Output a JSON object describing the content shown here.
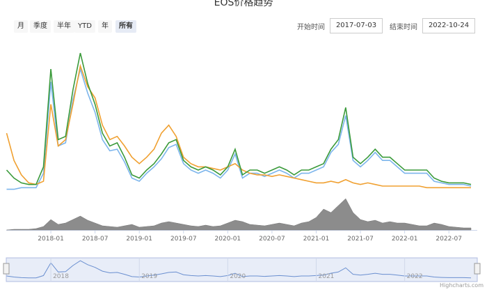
{
  "chart_data": {
    "type": "line",
    "title": "EOS价格趋势",
    "range_buttons": [
      "月",
      "季度",
      "半年",
      "YTD",
      "年",
      "所有"
    ],
    "selected_button": 5,
    "start_label": "开始时间",
    "start_date": "2017-07-03",
    "end_label": "结束时间",
    "end_date": "2022-10-24",
    "credit": "Highcharts.com",
    "x": [
      "2017-07",
      "2017-08",
      "2017-09",
      "2017-10",
      "2017-11",
      "2017-12",
      "2018-01",
      "2018-02",
      "2018-03",
      "2018-04",
      "2018-05",
      "2018-06",
      "2018-07",
      "2018-08",
      "2018-09",
      "2018-10",
      "2018-11",
      "2018-12",
      "2019-01",
      "2019-02",
      "2019-03",
      "2019-04",
      "2019-05",
      "2019-06",
      "2019-07",
      "2019-08",
      "2019-09",
      "2019-10",
      "2019-11",
      "2019-12",
      "2020-01",
      "2020-02",
      "2020-03",
      "2020-04",
      "2020-05",
      "2020-06",
      "2020-07",
      "2020-08",
      "2020-09",
      "2020-10",
      "2020-11",
      "2020-12",
      "2021-01",
      "2021-02",
      "2021-03",
      "2021-04",
      "2021-05",
      "2021-06",
      "2021-07",
      "2021-08",
      "2021-09",
      "2021-10",
      "2021-11",
      "2021-12",
      "2022-01",
      "2022-02",
      "2022-03",
      "2022-04",
      "2022-05",
      "2022-06",
      "2022-07",
      "2022-08",
      "2022-09",
      "2022-10"
    ],
    "xticks": [
      "2018-01",
      "2018-07",
      "2019-01",
      "2019-07",
      "2020-01",
      "2020-07",
      "2021-01",
      "2021-07",
      "2022-01",
      "2022-07"
    ],
    "ylim": [
      0,
      100
    ],
    "y2lim": [
      0,
      50
    ],
    "series": [
      {
        "color": "#7cb5ec",
        "values": [
          8,
          8,
          9,
          9,
          9,
          18,
          75,
          35,
          37,
          64,
          83,
          68,
          56,
          39,
          32,
          33,
          25,
          15,
          13,
          18,
          22,
          27,
          34,
          36,
          24,
          20,
          18,
          20,
          18,
          15,
          20,
          30,
          15,
          18,
          18,
          16,
          18,
          20,
          18,
          15,
          18,
          18,
          20,
          22,
          31,
          36,
          54,
          26,
          22,
          26,
          31,
          26,
          26,
          22,
          18,
          18,
          18,
          18,
          13,
          12,
          11,
          11,
          11,
          10
        ]
      },
      {
        "color": "#f0a030",
        "values": [
          43,
          26,
          17,
          12,
          11,
          13,
          61,
          35,
          39,
          61,
          85,
          72,
          65,
          48,
          39,
          41,
          35,
          28,
          24,
          28,
          33,
          43,
          48,
          41,
          28,
          24,
          22,
          22,
          21,
          20,
          22,
          24,
          20,
          18,
          17,
          17,
          16,
          17,
          16,
          15,
          14,
          13,
          12,
          12,
          13,
          12,
          14,
          12,
          11,
          12,
          11,
          10,
          10,
          10,
          10,
          10,
          10,
          9,
          9,
          9,
          9,
          9,
          9,
          9
        ]
      },
      {
        "color": "#3a9a3a",
        "values": [
          20,
          15,
          12,
          11,
          11,
          22,
          83,
          39,
          41,
          70,
          93,
          74,
          61,
          43,
          35,
          37,
          28,
          17,
          15,
          20,
          24,
          30,
          37,
          39,
          26,
          22,
          20,
          22,
          20,
          17,
          22,
          33,
          17,
          20,
          20,
          18,
          20,
          22,
          20,
          17,
          20,
          20,
          22,
          24,
          33,
          39,
          59,
          28,
          24,
          28,
          33,
          28,
          28,
          24,
          20,
          20,
          20,
          20,
          15,
          13,
          12,
          12,
          12,
          11
        ]
      },
      {
        "color": "#8c8c8c",
        "axis": "y2",
        "values": [
          0,
          1,
          1,
          1,
          2,
          5,
          15,
          8,
          10,
          15,
          20,
          14,
          10,
          6,
          5,
          4,
          6,
          8,
          4,
          5,
          6,
          10,
          12,
          10,
          8,
          6,
          5,
          7,
          5,
          6,
          10,
          14,
          12,
          8,
          7,
          6,
          8,
          10,
          8,
          6,
          10,
          12,
          18,
          30,
          25,
          35,
          45,
          25,
          15,
          12,
          14,
          10,
          12,
          10,
          10,
          8,
          6,
          6,
          10,
          8,
          5,
          4,
          3,
          3
        ]
      }
    ],
    "navigator": {
      "ticks": [
        "2018",
        "2019",
        "2020",
        "2021",
        "2022"
      ],
      "series": 2
    }
  }
}
